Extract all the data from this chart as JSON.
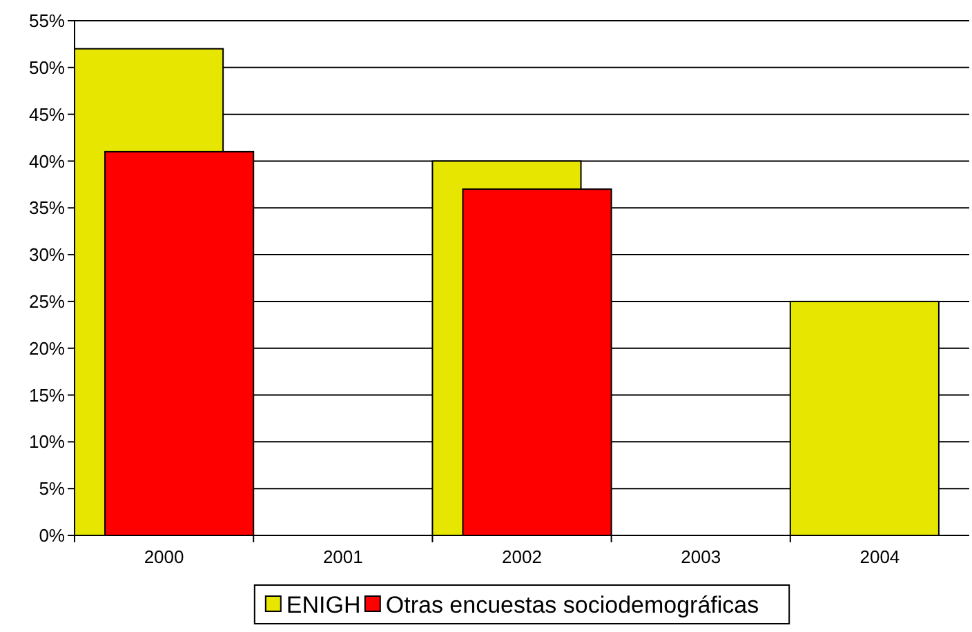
{
  "chart_data": {
    "type": "bar",
    "categories": [
      "2000",
      "2001",
      "2002",
      "2003",
      "2004"
    ],
    "series": [
      {
        "name": "ENIGH",
        "color": "#e6e600",
        "values": [
          52,
          null,
          40,
          null,
          25
        ]
      },
      {
        "name": "Otras encuestas sociodemográficas",
        "color": "#ff0000",
        "values": [
          41,
          null,
          37,
          null,
          null
        ]
      }
    ],
    "ylim": [
      0,
      55
    ],
    "yticks": [
      {
        "value": 0,
        "label": "0%"
      },
      {
        "value": 5,
        "label": "5%"
      },
      {
        "value": 10,
        "label": "10%"
      },
      {
        "value": 15,
        "label": "15%"
      },
      {
        "value": 20,
        "label": "20%"
      },
      {
        "value": 25,
        "label": "25%"
      },
      {
        "value": 30,
        "label": "30%"
      },
      {
        "value": 35,
        "label": "35%"
      },
      {
        "value": 40,
        "label": "40%"
      },
      {
        "value": 45,
        "label": "45%"
      },
      {
        "value": 50,
        "label": "50%"
      },
      {
        "value": 55,
        "label": "55%"
      }
    ],
    "grid": "y",
    "legend": "bottom"
  }
}
